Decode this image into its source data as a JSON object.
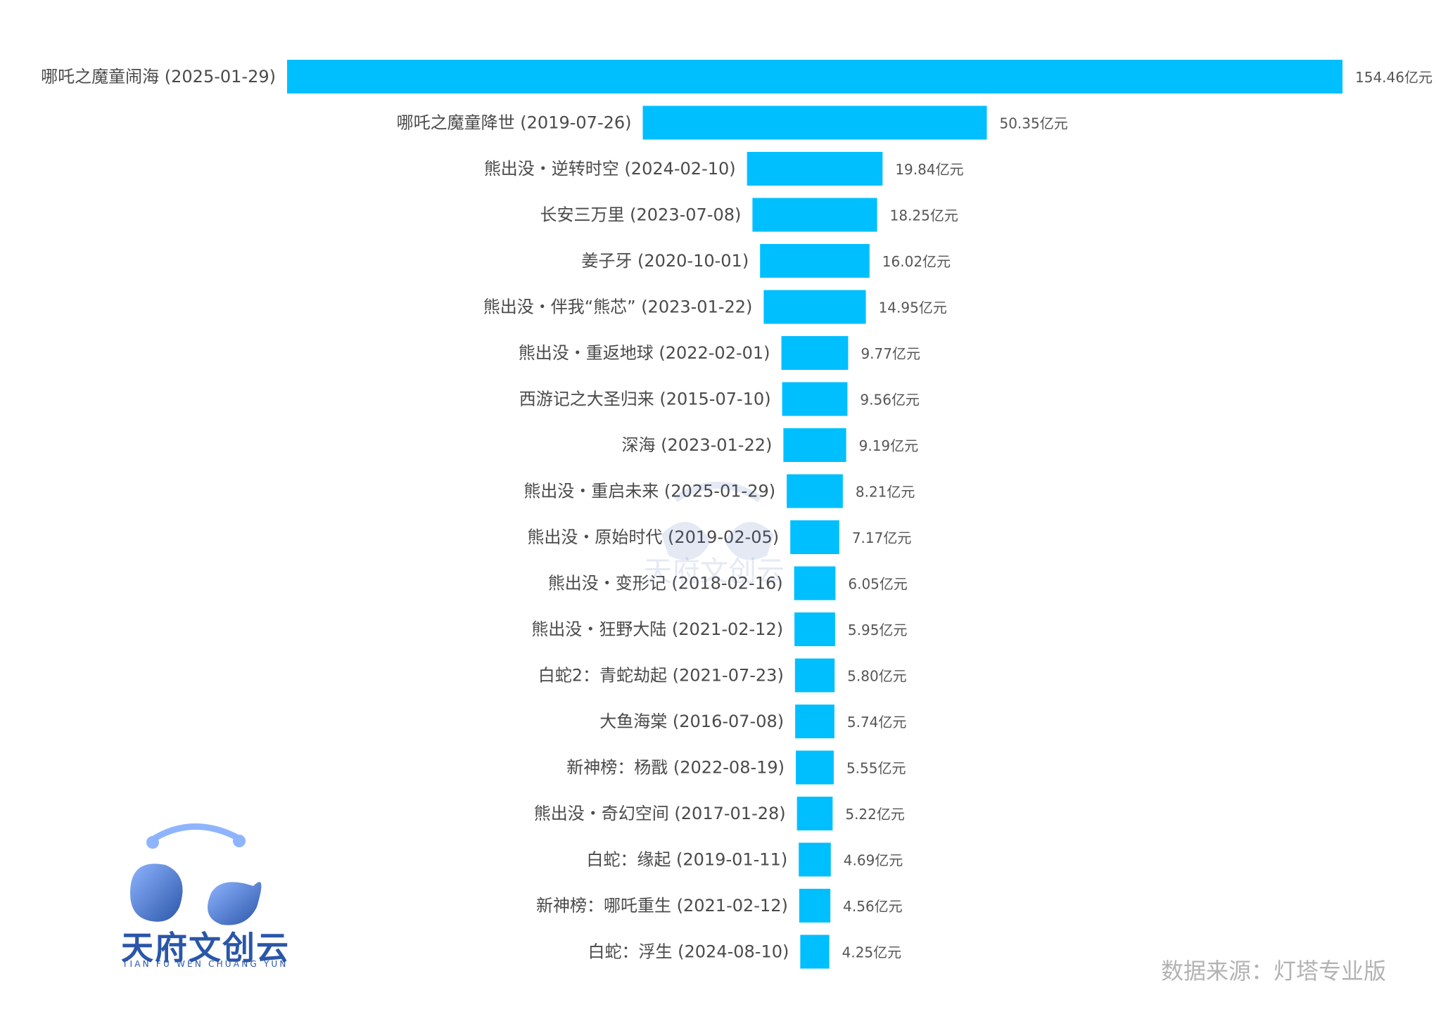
{
  "chart_data": {
    "type": "bar",
    "orientation": "horizontal",
    "categories": [
      "哪吒之魔童闹海 (2025-01-29)",
      "哪吒之魔童降世 (2019-07-26)",
      "熊出没・逆转时空 (2024-02-10)",
      "长安三万里 (2023-07-08)",
      "姜子牙 (2020-10-01)",
      "熊出没・伴我“熊芯” (2023-01-22)",
      "熊出没・重返地球 (2022-02-01)",
      "西游记之大圣归来 (2015-07-10)",
      "深海 (2023-01-22)",
      "熊出没・重启未来 (2025-01-29)",
      "熊出没・原始时代 (2019-02-05)",
      "熊出没・变形记 (2018-02-16)",
      "熊出没・狂野大陆 (2021-02-12)",
      "白蛇2：青蛇劫起 (2021-07-23)",
      "大鱼海棠 (2016-07-08)",
      "新神榜：杨戬 (2022-08-19)",
      "熊出没・奇幻空间 (2017-01-28)",
      "白蛇：缘起 (2019-01-11)",
      "新神榜：哪吒重生 (2021-02-12)",
      "白蛇：浮生 (2024-08-10)"
    ],
    "values": [
      154.46,
      50.35,
      19.84,
      18.25,
      16.02,
      14.95,
      9.77,
      9.56,
      9.19,
      8.21,
      7.17,
      6.05,
      5.95,
      5.8,
      5.74,
      5.55,
      5.22,
      4.69,
      4.56,
      4.25
    ],
    "value_labels": [
      "154.46亿元",
      "50.35亿元",
      "19.84亿元",
      "18.25亿元",
      "16.02亿元",
      "14.95亿元",
      "9.77亿元",
      "9.56亿元",
      "9.19亿元",
      "8.21亿元",
      "7.17亿元",
      "6.05亿元",
      "5.95亿元",
      "5.80亿元",
      "5.74亿元",
      "5.55亿元",
      "5.22亿元",
      "4.69亿元",
      "4.56亿元",
      "4.25亿元"
    ],
    "bar_color": "#00bfff",
    "alignment": "centered-funnel",
    "grid": false,
    "legend": "none"
  },
  "source_note": "数据来源：灯塔专业版",
  "logo": {
    "name": "天府文创云",
    "subtitle": "TIAN FU WEN CHUANG YUN"
  }
}
